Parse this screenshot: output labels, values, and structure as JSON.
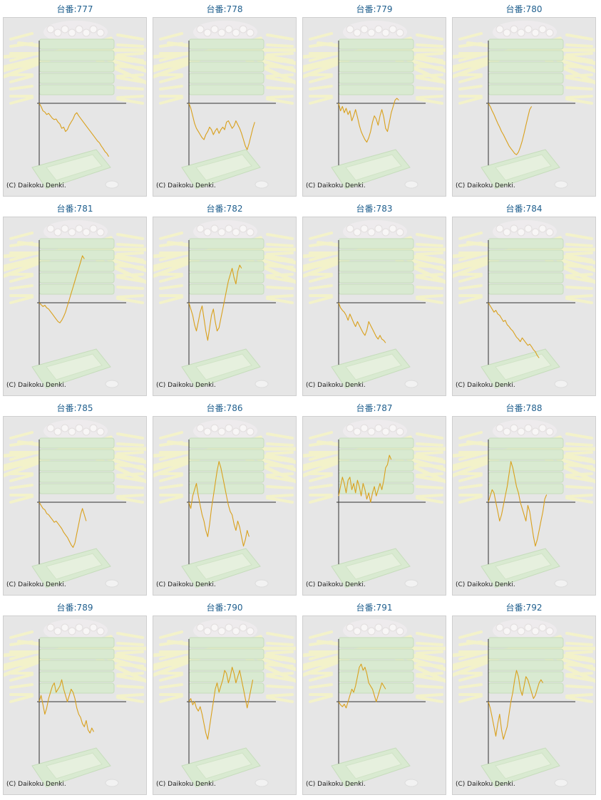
{
  "copyright_text": "(C) Daikoku Denki.",
  "colors": {
    "line": "#d9a01c",
    "axis": "#333333",
    "title": "#1f5f8e",
    "panel_bg": "#e6e6e6"
  },
  "chart_data": [
    {
      "type": "line",
      "title": "台番:777",
      "values": [
        0,
        -5,
        -12,
        -14,
        -18,
        -16,
        -20,
        -24,
        -26,
        -25,
        -30,
        -33,
        -40,
        -38,
        -45,
        -42,
        -35,
        -30,
        -25,
        -18,
        -15,
        -20,
        -24,
        -28,
        -32,
        -36,
        -40,
        -44,
        -48,
        -52,
        -56,
        -60,
        -63,
        -68,
        -72,
        -77,
        -80,
        -85
      ]
    },
    {
      "type": "line",
      "title": "台番:778",
      "values": [
        0,
        -8,
        -20,
        -32,
        -40,
        -45,
        -50,
        -55,
        -58,
        -50,
        -45,
        -38,
        -42,
        -50,
        -44,
        -40,
        -48,
        -42,
        -38,
        -42,
        -30,
        -28,
        -34,
        -40,
        -36,
        -28,
        -34,
        -40,
        -48,
        -58,
        -68,
        -74,
        -64,
        -52,
        -40,
        -30
      ]
    },
    {
      "type": "line",
      "title": "台番:779",
      "values": [
        0,
        -12,
        -5,
        -15,
        -8,
        -18,
        -12,
        -28,
        -20,
        -10,
        -22,
        -35,
        -45,
        -52,
        -58,
        -62,
        -55,
        -45,
        -30,
        -20,
        -25,
        -35,
        -20,
        -10,
        -22,
        -40,
        -45,
        -30,
        -15,
        -5,
        5,
        8,
        5
      ]
    },
    {
      "type": "line",
      "title": "台番:780",
      "values": [
        0,
        -5,
        -12,
        -18,
        -25,
        -32,
        -38,
        -45,
        -50,
        -56,
        -62,
        -68,
        -72,
        -76,
        -80,
        -82,
        -78,
        -70,
        -60,
        -48,
        -35,
        -22,
        -10,
        -5
      ]
    },
    {
      "type": "line",
      "title": "台番:781",
      "values": [
        0,
        -3,
        -6,
        -4,
        -8,
        -10,
        -14,
        -18,
        -22,
        -26,
        -30,
        -32,
        -28,
        -22,
        -15,
        -5,
        5,
        15,
        25,
        35,
        45,
        55,
        65,
        75,
        70
      ]
    },
    {
      "type": "line",
      "title": "台番:782",
      "values": [
        0,
        -10,
        -20,
        -35,
        -45,
        -30,
        -15,
        -5,
        -25,
        -45,
        -60,
        -40,
        -20,
        -10,
        -30,
        -45,
        -40,
        -25,
        -10,
        5,
        20,
        35,
        45,
        55,
        40,
        30,
        50,
        60,
        55
      ]
    },
    {
      "type": "line",
      "title": "台番:783",
      "values": [
        0,
        -8,
        -12,
        -15,
        -20,
        -28,
        -18,
        -25,
        -32,
        -38,
        -30,
        -36,
        -42,
        -48,
        -52,
        -44,
        -30,
        -36,
        -42,
        -48,
        -54,
        -58,
        -52,
        -58,
        -60,
        -64
      ]
    },
    {
      "type": "line",
      "title": "台番:784",
      "values": [
        0,
        -5,
        -10,
        -15,
        -12,
        -18,
        -20,
        -25,
        -30,
        -28,
        -35,
        -38,
        -42,
        -45,
        -50,
        -55,
        -58,
        -62,
        -56,
        -60,
        -64,
        -68,
        -66,
        -70,
        -75,
        -78,
        -84,
        -88
      ]
    },
    {
      "type": "line",
      "title": "台番:785",
      "values": [
        0,
        -5,
        -10,
        -12,
        -18,
        -20,
        -24,
        -28,
        -32,
        -30,
        -34,
        -38,
        -42,
        -48,
        -52,
        -56,
        -62,
        -68,
        -72,
        -65,
        -50,
        -35,
        -20,
        -10,
        -20,
        -30
      ]
    },
    {
      "type": "line",
      "title": "台番:786",
      "values": [
        0,
        -10,
        10,
        20,
        30,
        10,
        -5,
        -20,
        -30,
        -45,
        -55,
        -35,
        -10,
        10,
        30,
        50,
        65,
        55,
        40,
        25,
        10,
        -5,
        -15,
        -20,
        -35,
        -45,
        -30,
        -40,
        -55,
        -70,
        -60,
        -45,
        -55
      ]
    },
    {
      "type": "line",
      "title": "台番:787",
      "values": [
        10,
        25,
        40,
        30,
        15,
        35,
        40,
        20,
        30,
        15,
        35,
        25,
        10,
        30,
        20,
        5,
        15,
        0,
        15,
        25,
        10,
        20,
        30,
        20,
        35,
        55,
        60,
        75,
        68
      ]
    },
    {
      "type": "line",
      "title": "台番:788",
      "values": [
        0,
        10,
        20,
        15,
        0,
        -15,
        -30,
        -20,
        -5,
        10,
        25,
        45,
        65,
        55,
        40,
        25,
        15,
        0,
        -10,
        -20,
        -30,
        -5,
        -15,
        -35,
        -55,
        -70,
        -60,
        -45,
        -30,
        -15,
        5,
        12
      ]
    },
    {
      "type": "line",
      "title": "台番:789",
      "values": [
        0,
        10,
        -5,
        -20,
        -10,
        5,
        15,
        25,
        30,
        15,
        20,
        25,
        35,
        20,
        10,
        0,
        10,
        20,
        15,
        5,
        -10,
        -20,
        -25,
        -35,
        -40,
        -30,
        -45,
        -50,
        -42,
        -48
      ]
    },
    {
      "type": "line",
      "title": "台番:790",
      "values": [
        0,
        5,
        -5,
        0,
        -10,
        -15,
        -8,
        -20,
        -35,
        -50,
        -60,
        -40,
        -20,
        0,
        20,
        30,
        15,
        25,
        35,
        50,
        45,
        30,
        40,
        55,
        45,
        30,
        40,
        50,
        35,
        20,
        5,
        -10,
        5,
        20,
        35
      ]
    },
    {
      "type": "line",
      "title": "台番:791",
      "values": [
        0,
        -5,
        -8,
        -4,
        -10,
        0,
        10,
        20,
        15,
        25,
        40,
        55,
        60,
        50,
        55,
        45,
        30,
        25,
        20,
        10,
        0,
        10,
        20,
        30,
        25,
        20
      ]
    },
    {
      "type": "line",
      "title": "台番:792",
      "values": [
        0,
        -10,
        -25,
        -40,
        -55,
        -35,
        -20,
        -45,
        -60,
        -50,
        -40,
        -20,
        0,
        15,
        35,
        50,
        40,
        20,
        10,
        25,
        40,
        35,
        25,
        15,
        5,
        10,
        20,
        30,
        35,
        30
      ]
    }
  ]
}
